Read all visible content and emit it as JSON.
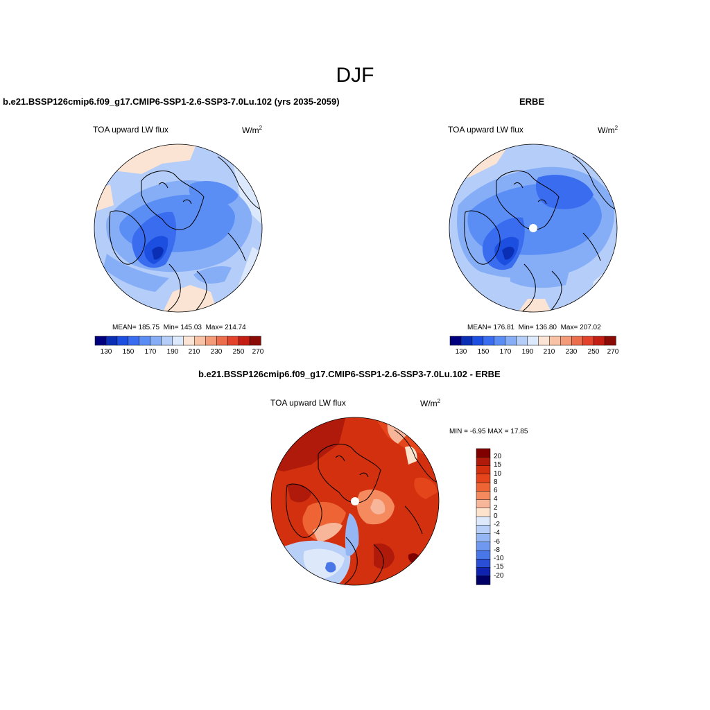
{
  "season": "DJF",
  "panels": [
    {
      "title": "b.e21.BSSP126cmip6.f09_g17.CMIP6-SSP1-2.6-SSP3-7.0Lu.102 (yrs 2035-2059)",
      "variable": "TOA upward LW flux",
      "units": "W/m",
      "units_sup": "2",
      "stats": {
        "mean": "MEAN= 185.75",
        "min": "Min= 145.03",
        "max": "Max= 214.74"
      },
      "colorbar": {
        "labels": [
          "130",
          "150",
          "170",
          "190",
          "210",
          "230",
          "250",
          "270"
        ]
      }
    },
    {
      "title": "ERBE",
      "variable": "TOA upward LW flux",
      "units": "W/m",
      "units_sup": "2",
      "stats": {
        "mean": "MEAN= 176.81",
        "min": "Min= 136.80",
        "max": "Max= 207.02"
      },
      "colorbar": {
        "labels": [
          "130",
          "150",
          "170",
          "190",
          "210",
          "230",
          "250",
          "270"
        ]
      }
    },
    {
      "title": "b.e21.BSSP126cmip6.f09_g17.CMIP6-SSP1-2.6-SSP3-7.0Lu.102 - ERBE",
      "variable": "TOA upward LW flux",
      "units": "W/m",
      "units_sup": "2",
      "stats": {
        "minmax": "MIN =  -6.95 MAX =  17.85"
      },
      "colorbar": {
        "labels": [
          "20",
          "15",
          "10",
          "8",
          "6",
          "4",
          "2",
          "0",
          "-2",
          "-4",
          "-6",
          "-8",
          "-10",
          "-15",
          "-20"
        ]
      }
    }
  ],
  "colors": {
    "abs_scale": [
      "#00007f",
      "#0a2fb5",
      "#1c4fe0",
      "#3a6cf0",
      "#5a8ef5",
      "#86aef7",
      "#b5cdf9",
      "#dce8fb",
      "#fbe4d3",
      "#f8c2a6",
      "#f39a78",
      "#ec6d4c",
      "#e2432a",
      "#c41e12",
      "#8a0a05"
    ],
    "diff_scale": [
      "#800000",
      "#b01a0a",
      "#d2300f",
      "#e5451a",
      "#ef6434",
      "#f48a5e",
      "#f7b59a",
      "#fde3cc",
      "#dde9fb",
      "#b8d0f8",
      "#94b6f5",
      "#6f98f0",
      "#4a77e8",
      "#2a4fd6",
      "#0f23b0",
      "#000066"
    ]
  }
}
